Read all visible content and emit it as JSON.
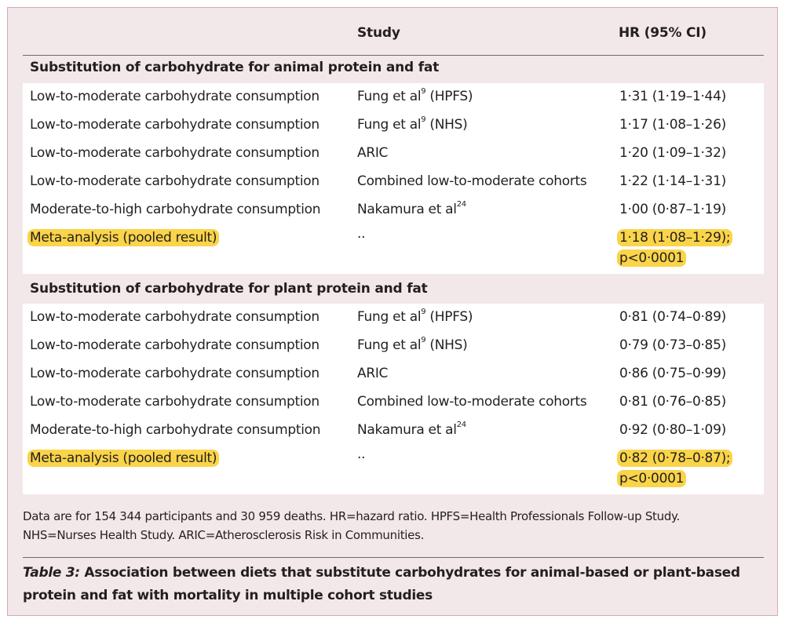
{
  "header": {
    "study": "Study",
    "hr": "HR (95% CI)"
  },
  "sections": [
    {
      "title": "Substitution of carbohydrate for animal protein and fat",
      "rows": [
        {
          "label": "Low-to-moderate carbohydrate consumption",
          "study": "Fung et al",
          "sup": "9",
          "study_suffix": " (HPFS)",
          "hr": "1·31 (1·19–1·44)"
        },
        {
          "label": "Low-to-moderate carbohydrate consumption",
          "study": "Fung et al",
          "sup": "9",
          "study_suffix": " (NHS)",
          "hr": "1·17 (1·08–1·26)"
        },
        {
          "label": "Low-to-moderate carbohydrate consumption",
          "study": "ARIC",
          "sup": "",
          "study_suffix": "",
          "hr": "1·20 (1·09–1·32)"
        },
        {
          "label": "Low-to-moderate carbohydrate consumption",
          "study": "Combined low-to-moderate cohorts",
          "sup": "",
          "study_suffix": "",
          "hr": "1·22 (1·14–1·31)"
        },
        {
          "label": "Moderate-to-high carbohydrate consumption",
          "study": "Nakamura et al",
          "sup": "24",
          "study_suffix": "",
          "hr": "1·00 (0·87–1·19)"
        }
      ],
      "meta": {
        "label": "Meta-analysis (pooled result)",
        "study": "··",
        "hr_line1": "1·18 (1·08–1·29);",
        "hr_line2": "p<0·0001"
      }
    },
    {
      "title": "Substitution of carbohydrate for plant protein and fat",
      "rows": [
        {
          "label": "Low-to-moderate carbohydrate consumption",
          "study": "Fung et al",
          "sup": "9",
          "study_suffix": " (HPFS)",
          "hr": "0·81 (0·74–0·89)"
        },
        {
          "label": "Low-to-moderate carbohydrate consumption",
          "study": "Fung et al",
          "sup": "9",
          "study_suffix": " (NHS)",
          "hr": "0·79 (0·73–0·85)"
        },
        {
          "label": "Low-to-moderate carbohydrate consumption",
          "study": "ARIC",
          "sup": "",
          "study_suffix": "",
          "hr": "0·86 (0·75–0·99)"
        },
        {
          "label": "Low-to-moderate carbohydrate consumption",
          "study": "Combined low-to-moderate cohorts",
          "sup": "",
          "study_suffix": "",
          "hr": "0·81 (0·76–0·85)"
        },
        {
          "label": "Moderate-to-high carbohydrate consumption",
          "study": "Nakamura et al",
          "sup": "24",
          "study_suffix": "",
          "hr": "0·92 (0·80–1·09)"
        }
      ],
      "meta": {
        "label": "Meta-analysis (pooled result)",
        "study": "··",
        "hr_line1": "0·82 (0·78–0·87);",
        "hr_line2": "p<0·0001"
      }
    }
  ],
  "footnote": {
    "line1": "Data are for 154 344 participants and 30 959 deaths. HR=hazard ratio. HPFS=Health Professionals Follow-up Study.",
    "line2": "NHS=Nurses Health Study. ARIC=Atherosclerosis Risk in Communities."
  },
  "caption": {
    "label": "Table 3:",
    "text": " Association between diets that substitute carbohydrates for animal-based or plant-based protein and fat with mortality in multiple cohort studies"
  },
  "colors": {
    "panel_bg": "#f3e8e9",
    "border": "#d9a9ae",
    "highlight": "#fad449"
  }
}
